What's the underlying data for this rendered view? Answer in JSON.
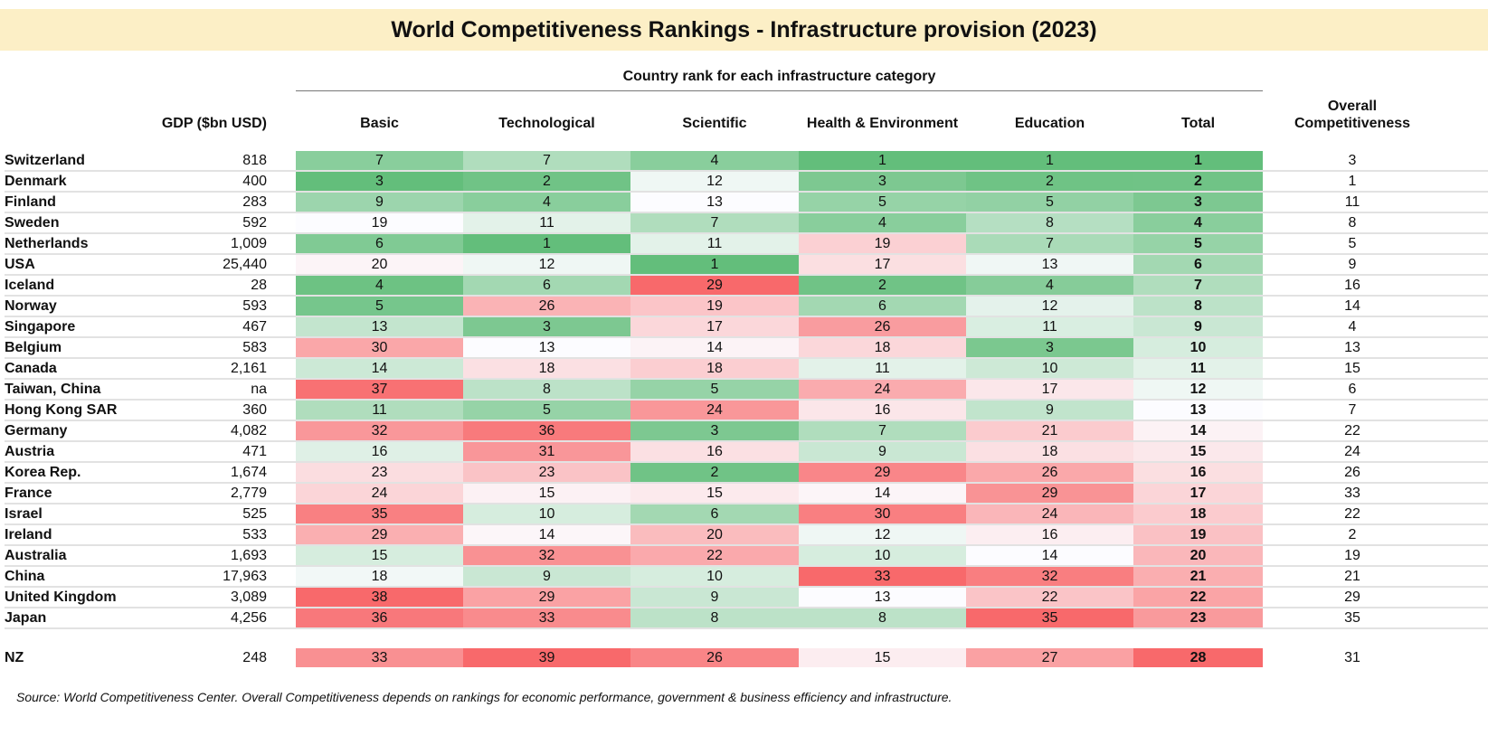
{
  "title": "World Competitiveness Rankings - Infrastructure provision (2023)",
  "group_header": "Country rank for each infrastructure category",
  "columns": {
    "gdp": "GDP ($bn USD)",
    "basic": "Basic",
    "technological": "Technological",
    "scientific": "Scientific",
    "health": "Health & Environment",
    "education": "Education",
    "total": "Total",
    "overall_line1": "Overall",
    "overall_line2": "Competitiveness"
  },
  "colors": {
    "best": "#63BE7B",
    "mid": "#FCFCFF",
    "worst": "#F8696B",
    "title_bg": "#FCEFC6"
  },
  "chart_data": {
    "type": "heatmap",
    "title": "World Competitiveness Rankings - Infrastructure provision (2023)",
    "heat_columns": [
      "Basic",
      "Technological",
      "Scientific",
      "Health & Environment",
      "Education",
      "Total"
    ],
    "rows": [
      {
        "country": "Switzerland",
        "gdp": "818",
        "ranks": [
          7,
          7,
          4,
          1,
          1,
          1
        ],
        "overall": 3
      },
      {
        "country": "Denmark",
        "gdp": "400",
        "ranks": [
          3,
          2,
          12,
          3,
          2,
          2
        ],
        "overall": 1
      },
      {
        "country": "Finland",
        "gdp": "283",
        "ranks": [
          9,
          4,
          13,
          5,
          5,
          3
        ],
        "overall": 11
      },
      {
        "country": "Sweden",
        "gdp": "592",
        "ranks": [
          19,
          11,
          7,
          4,
          8,
          4
        ],
        "overall": 8
      },
      {
        "country": "Netherlands",
        "gdp": "1,009",
        "ranks": [
          6,
          1,
          11,
          19,
          7,
          5
        ],
        "overall": 5
      },
      {
        "country": "USA",
        "gdp": "25,440",
        "ranks": [
          20,
          12,
          1,
          17,
          13,
          6
        ],
        "overall": 9
      },
      {
        "country": "Iceland",
        "gdp": "28",
        "ranks": [
          4,
          6,
          29,
          2,
          4,
          7
        ],
        "overall": 16
      },
      {
        "country": "Norway",
        "gdp": "593",
        "ranks": [
          5,
          26,
          19,
          6,
          12,
          8
        ],
        "overall": 14
      },
      {
        "country": "Singapore",
        "gdp": "467",
        "ranks": [
          13,
          3,
          17,
          26,
          11,
          9
        ],
        "overall": 4
      },
      {
        "country": "Belgium",
        "gdp": "583",
        "ranks": [
          30,
          13,
          14,
          18,
          3,
          10
        ],
        "overall": 13
      },
      {
        "country": "Canada",
        "gdp": "2,161",
        "ranks": [
          14,
          18,
          18,
          11,
          10,
          11
        ],
        "overall": 15
      },
      {
        "country": "Taiwan, China",
        "gdp": "na",
        "ranks": [
          37,
          8,
          5,
          24,
          17,
          12
        ],
        "overall": 6
      },
      {
        "country": "Hong Kong SAR",
        "gdp": "360",
        "ranks": [
          11,
          5,
          24,
          16,
          9,
          13
        ],
        "overall": 7
      },
      {
        "country": "Germany",
        "gdp": "4,082",
        "ranks": [
          32,
          36,
          3,
          7,
          21,
          14
        ],
        "overall": 22
      },
      {
        "country": "Austria",
        "gdp": "471",
        "ranks": [
          16,
          31,
          16,
          9,
          18,
          15
        ],
        "overall": 24
      },
      {
        "country": "Korea Rep.",
        "gdp": "1,674",
        "ranks": [
          23,
          23,
          2,
          29,
          26,
          16
        ],
        "overall": 26
      },
      {
        "country": "France",
        "gdp": "2,779",
        "ranks": [
          24,
          15,
          15,
          14,
          29,
          17
        ],
        "overall": 33
      },
      {
        "country": "Israel",
        "gdp": "525",
        "ranks": [
          35,
          10,
          6,
          30,
          24,
          18
        ],
        "overall": 22
      },
      {
        "country": "Ireland",
        "gdp": "533",
        "ranks": [
          29,
          14,
          20,
          12,
          16,
          19
        ],
        "overall": 2
      },
      {
        "country": "Australia",
        "gdp": "1,693",
        "ranks": [
          15,
          32,
          22,
          10,
          14,
          20
        ],
        "overall": 19
      },
      {
        "country": "China",
        "gdp": "17,963",
        "ranks": [
          18,
          9,
          10,
          33,
          32,
          21
        ],
        "overall": 21
      },
      {
        "country": "United Kingdom",
        "gdp": "3,089",
        "ranks": [
          38,
          29,
          9,
          13,
          22,
          22
        ],
        "overall": 29
      },
      {
        "country": "Japan",
        "gdp": "4,256",
        "ranks": [
          36,
          33,
          8,
          8,
          35,
          23
        ],
        "overall": 35
      }
    ],
    "nz": {
      "country": "NZ",
      "gdp": "248",
      "ranks": [
        33,
        39,
        26,
        15,
        27,
        28
      ],
      "overall": 31
    }
  },
  "source": "Source: World Competitiveness Center. Overall Competitiveness depends on rankings for economic performance, government & business efficiency and infrastructure."
}
